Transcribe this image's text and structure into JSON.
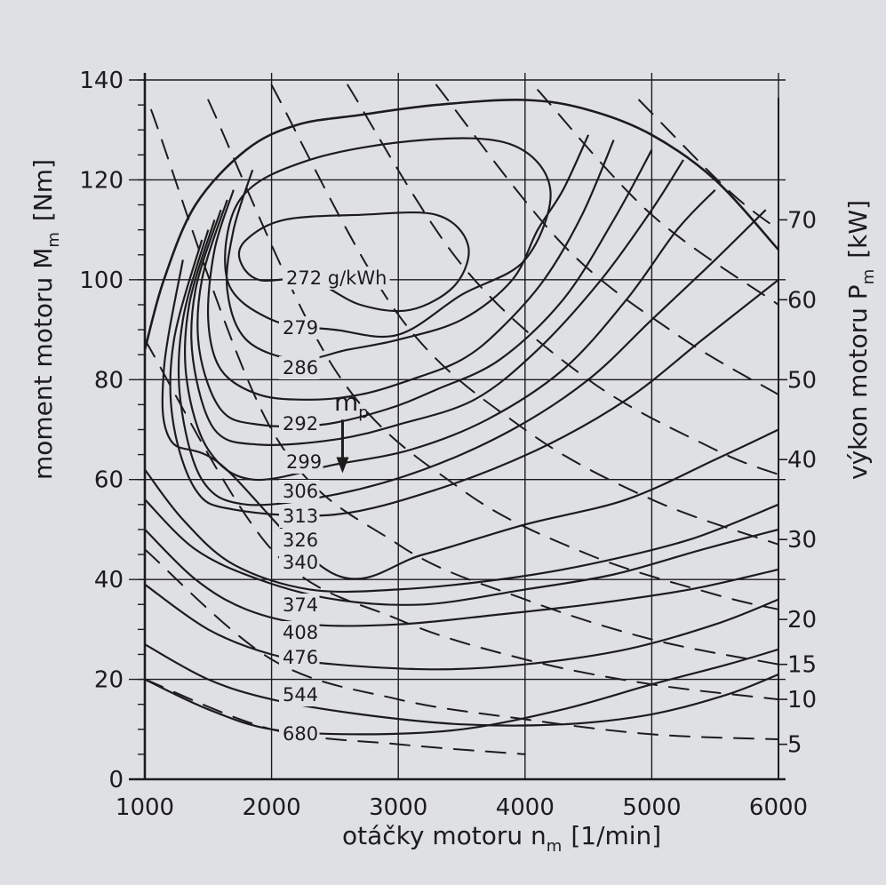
{
  "chart_data": {
    "type": "line",
    "xlabel": "otáčky motoru n",
    "xlabel_sub": "m",
    "xlabel_unit": "[1/min]",
    "ylabel": "moment motoru M",
    "ylabel_sub": "m",
    "ylabel_unit": "[Nm]",
    "y2label": "výkon motoru P",
    "y2label_sub": "m",
    "y2label_unit": "[kW]",
    "xlim": [
      1000,
      6000
    ],
    "ylim": [
      0,
      140
    ],
    "xticks": [
      "1000",
      "2000",
      "3000",
      "4000",
      "5000",
      "6000"
    ],
    "yticks": [
      "0",
      "20",
      "40",
      "60",
      "80",
      "100",
      "120",
      "140"
    ],
    "grid": true,
    "mp_label": "m",
    "mp_sub": "p",
    "power_ticks": [
      {
        "label": "5",
        "torque": 7
      },
      {
        "label": "10",
        "torque": 16
      },
      {
        "label": "15",
        "torque": 23
      },
      {
        "label": "20",
        "torque": 32
      },
      {
        "label": "30",
        "torque": 48
      },
      {
        "label": "40",
        "torque": 64
      },
      {
        "label": "50",
        "torque": 80
      },
      {
        "label": "60",
        "torque": 96
      },
      {
        "label": "70",
        "torque": 112
      }
    ],
    "full_load_curve": [
      [
        1000,
        86
      ],
      [
        1150,
        100
      ],
      [
        1400,
        115
      ],
      [
        1800,
        126
      ],
      [
        2200,
        131
      ],
      [
        2700,
        133
      ],
      [
        3300,
        135
      ],
      [
        4000,
        136
      ],
      [
        4500,
        134
      ],
      [
        5000,
        129
      ],
      [
        5500,
        120
      ],
      [
        6000,
        106
      ]
    ],
    "bsfc_contours": [
      {
        "label": "272 g/kWh",
        "closed": true,
        "points": [
          [
            1800,
            108
          ],
          [
            2100,
            112
          ],
          [
            2700,
            113
          ],
          [
            3300,
            113
          ],
          [
            3550,
            107
          ],
          [
            3450,
            99
          ],
          [
            3100,
            94
          ],
          [
            2700,
            95
          ],
          [
            2300,
            100
          ],
          [
            1900,
            100
          ],
          [
            1750,
            104
          ],
          [
            1800,
            108
          ]
        ]
      },
      {
        "label": "279",
        "closed": true,
        "points": [
          [
            1750,
            116
          ],
          [
            2300,
            124
          ],
          [
            3200,
            128
          ],
          [
            3900,
            127
          ],
          [
            4200,
            118
          ],
          [
            4000,
            104
          ],
          [
            3500,
            97
          ],
          [
            3000,
            89
          ],
          [
            2500,
            90
          ],
          [
            2000,
            92
          ],
          [
            1650,
            100
          ],
          [
            1750,
            116
          ]
        ]
      },
      {
        "label": "286",
        "closed": false,
        "points": [
          [
            1850,
            122
          ],
          [
            1700,
            110
          ],
          [
            1650,
            98
          ],
          [
            1800,
            88
          ],
          [
            2200,
            84
          ],
          [
            2600,
            86
          ],
          [
            3000,
            88
          ],
          [
            3500,
            92
          ],
          [
            3900,
            100
          ],
          [
            4100,
            110
          ],
          [
            4300,
            118
          ],
          [
            4500,
            129
          ]
        ]
      },
      {
        "label": "292",
        "closed": false,
        "points": [
          [
            1700,
            118
          ],
          [
            1550,
            106
          ],
          [
            1500,
            92
          ],
          [
            1600,
            82
          ],
          [
            1900,
            77
          ],
          [
            2300,
            76
          ],
          [
            2700,
            77
          ],
          [
            3100,
            80
          ],
          [
            3500,
            84
          ],
          [
            3800,
            90
          ],
          [
            4150,
            100
          ],
          [
            4450,
            113
          ],
          [
            4700,
            128
          ]
        ]
      },
      {
        "label": "299",
        "closed": false,
        "points": [
          [
            1650,
            116
          ],
          [
            1450,
            100
          ],
          [
            1430,
            86
          ],
          [
            1600,
            74
          ],
          [
            1900,
            71
          ],
          [
            2400,
            71
          ],
          [
            2900,
            74
          ],
          [
            3300,
            78
          ],
          [
            3800,
            84
          ],
          [
            4300,
            96
          ],
          [
            4700,
            112
          ],
          [
            5000,
            126
          ]
        ]
      },
      {
        "label": "306",
        "closed": false,
        "points": [
          [
            1600,
            114
          ],
          [
            1400,
            98
          ],
          [
            1380,
            84
          ],
          [
            1550,
            70
          ],
          [
            1900,
            67
          ],
          [
            2500,
            68
          ],
          [
            3000,
            71
          ],
          [
            3600,
            76
          ],
          [
            4100,
            86
          ],
          [
            4600,
            100
          ],
          [
            5000,
            114
          ],
          [
            5250,
            124
          ]
        ]
      },
      {
        "label": "313",
        "closed": false,
        "points": [
          [
            1550,
            112
          ],
          [
            1350,
            95
          ],
          [
            1330,
            80
          ],
          [
            1500,
            66
          ],
          [
            1850,
            60
          ],
          [
            2500,
            63
          ],
          [
            3100,
            66
          ],
          [
            3700,
            72
          ],
          [
            4300,
            82
          ],
          [
            4800,
            96
          ],
          [
            5200,
            110
          ],
          [
            5500,
            118
          ]
        ]
      },
      {
        "label": "326",
        "closed": false,
        "points": [
          [
            1500,
            110
          ],
          [
            1300,
            92
          ],
          [
            1280,
            76
          ],
          [
            1450,
            60
          ],
          [
            1800,
            55
          ],
          [
            2500,
            57
          ],
          [
            3200,
            62
          ],
          [
            3900,
            70
          ],
          [
            4500,
            80
          ],
          [
            5000,
            92
          ],
          [
            5500,
            104
          ],
          [
            5900,
            114
          ]
        ]
      },
      {
        "label": "340",
        "closed": false,
        "points": [
          [
            1450,
            108
          ],
          [
            1230,
            88
          ],
          [
            1220,
            72
          ],
          [
            1400,
            58
          ],
          [
            1700,
            54
          ],
          [
            2500,
            53
          ],
          [
            3300,
            58
          ],
          [
            4100,
            66
          ],
          [
            4800,
            76
          ],
          [
            5400,
            88
          ],
          [
            6000,
            100
          ]
        ]
      },
      {
        "label": "374",
        "closed": false,
        "points": [
          [
            1300,
            104
          ],
          [
            1150,
            82
          ],
          [
            1200,
            68
          ],
          [
            1600,
            63
          ],
          [
            2500,
            41
          ],
          [
            3200,
            45
          ],
          [
            4000,
            51
          ],
          [
            4800,
            56
          ],
          [
            5500,
            64
          ],
          [
            6000,
            70
          ]
        ]
      },
      {
        "label": "408",
        "closed": false,
        "points": [
          [
            1000,
            62
          ],
          [
            1300,
            52
          ],
          [
            1700,
            43
          ],
          [
            2300,
            38
          ],
          [
            3000,
            38
          ],
          [
            3800,
            40
          ],
          [
            4500,
            43
          ],
          [
            5300,
            48
          ],
          [
            6000,
            55
          ]
        ]
      },
      {
        "label": "476",
        "closed": false,
        "points": [
          [
            1000,
            50
          ],
          [
            1400,
            40
          ],
          [
            1800,
            34
          ],
          [
            2300,
            31
          ],
          [
            3000,
            31
          ],
          [
            3800,
            33
          ],
          [
            4500,
            35
          ],
          [
            5300,
            38
          ],
          [
            6000,
            42
          ]
        ]
      },
      {
        "label": "544",
        "closed": false,
        "points": [
          [
            1000,
            39
          ],
          [
            1500,
            30
          ],
          [
            2000,
            25
          ],
          [
            2500,
            23
          ],
          [
            3300,
            22
          ],
          [
            4000,
            23
          ],
          [
            4800,
            26
          ],
          [
            5500,
            31
          ],
          [
            6000,
            36
          ]
        ]
      },
      {
        "label": "680",
        "closed": false,
        "points": [
          [
            1000,
            27
          ],
          [
            1500,
            20
          ],
          [
            2000,
            16
          ],
          [
            2700,
            13
          ],
          [
            3500,
            11
          ],
          [
            4300,
            11
          ],
          [
            5000,
            13
          ],
          [
            5600,
            17
          ],
          [
            6000,
            21
          ]
        ]
      },
      {
        "label": "",
        "closed": false,
        "points": [
          [
            1000,
            20
          ],
          [
            1500,
            14
          ],
          [
            2000,
            10
          ],
          [
            2700,
            9
          ],
          [
            3500,
            10
          ],
          [
            4300,
            14
          ],
          [
            5000,
            19
          ],
          [
            5600,
            23
          ],
          [
            6000,
            26
          ]
        ]
      },
      {
        "label": "",
        "closed": false,
        "points": [
          [
            1000,
            56
          ],
          [
            1400,
            46
          ],
          [
            1900,
            40
          ],
          [
            2500,
            36
          ],
          [
            3200,
            35
          ],
          [
            4000,
            38
          ],
          [
            4700,
            41
          ],
          [
            5400,
            46
          ],
          [
            6000,
            50
          ]
        ]
      }
    ],
    "constant_power_lines": [
      {
        "points": [
          [
            1000,
            20
          ],
          [
            2000,
            10
          ],
          [
            3000,
            7
          ],
          [
            4000,
            5
          ]
        ]
      },
      {
        "points": [
          [
            1000,
            46
          ],
          [
            2000,
            24
          ],
          [
            3000,
            16
          ],
          [
            4000,
            12
          ],
          [
            5000,
            9
          ],
          [
            6000,
            8
          ]
        ]
      },
      {
        "points": [
          [
            1000,
            88
          ],
          [
            2000,
            46
          ],
          [
            3000,
            32
          ],
          [
            4000,
            24
          ],
          [
            5000,
            19
          ],
          [
            6000,
            16
          ]
        ]
      },
      {
        "points": [
          [
            1050,
            134
          ],
          [
            2000,
            70
          ],
          [
            3000,
            47
          ],
          [
            4000,
            36
          ],
          [
            5000,
            28
          ],
          [
            6000,
            23
          ]
        ]
      },
      {
        "points": [
          [
            1500,
            136
          ],
          [
            2500,
            82
          ],
          [
            3500,
            58
          ],
          [
            4500,
            45
          ],
          [
            5500,
            37
          ],
          [
            6000,
            34
          ]
        ]
      },
      {
        "points": [
          [
            2000,
            139
          ],
          [
            3000,
            93
          ],
          [
            4000,
            70
          ],
          [
            5000,
            56
          ],
          [
            6000,
            47
          ]
        ]
      },
      {
        "points": [
          [
            2600,
            139
          ],
          [
            3500,
            103
          ],
          [
            4500,
            80
          ],
          [
            5500,
            66
          ],
          [
            6000,
            61
          ]
        ]
      },
      {
        "points": [
          [
            3300,
            139
          ],
          [
            4300,
            107
          ],
          [
            5200,
            89
          ],
          [
            6000,
            77
          ]
        ]
      },
      {
        "points": [
          [
            4100,
            138
          ],
          [
            5000,
            113
          ],
          [
            6000,
            95
          ]
        ]
      },
      {
        "points": [
          [
            4900,
            136
          ],
          [
            5600,
            118
          ],
          [
            6000,
            110
          ]
        ]
      }
    ],
    "mp_arrow": {
      "x": 2560,
      "y_from": 72,
      "y_to": 62
    }
  }
}
